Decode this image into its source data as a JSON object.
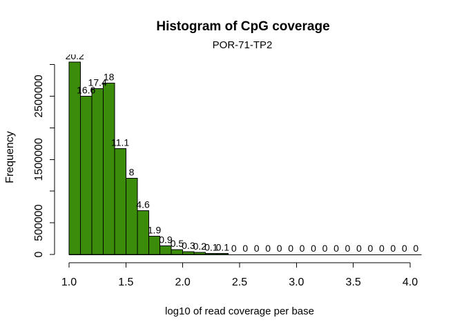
{
  "chart_data": {
    "type": "bar",
    "title": "Histogram of CpG coverage",
    "subtitle": "POR-71-TP2",
    "xlabel": "log10 of read coverage per base",
    "ylabel": "Frequency",
    "bin_edges": [
      1.0,
      1.1,
      1.2,
      1.3,
      1.4,
      1.5,
      1.6,
      1.7,
      1.8,
      1.9,
      2.0,
      2.1,
      2.2,
      2.3,
      2.4,
      2.5,
      2.6,
      2.7,
      2.8,
      2.9,
      3.0,
      3.1,
      3.2,
      3.3,
      3.4,
      3.5,
      3.6,
      3.7,
      3.8,
      3.9,
      4.0,
      4.1
    ],
    "percent_labels": [
      "20.2",
      "16.6",
      "17.4",
      "18",
      "11.1",
      "8",
      "4.6",
      "1.9",
      "0.9",
      "0.5",
      "0.3",
      "0.2",
      "0.1",
      "0.1",
      "0",
      "0",
      "0",
      "0",
      "0",
      "0",
      "0",
      "0",
      "0",
      "0",
      "0",
      "0",
      "0",
      "0",
      "0",
      "0",
      "0"
    ],
    "percent_values": [
      20.2,
      16.6,
      17.4,
      18,
      11.1,
      8,
      4.6,
      1.9,
      0.9,
      0.5,
      0.3,
      0.2,
      0.1,
      0.1,
      0,
      0,
      0,
      0,
      0,
      0,
      0,
      0,
      0,
      0,
      0,
      0,
      0,
      0,
      0,
      0,
      0
    ],
    "frequencies": [
      3040000,
      2498000,
      2619000,
      2709000,
      1671000,
      1204000,
      692000,
      286000,
      135000,
      75000,
      45000,
      30000,
      15000,
      15000,
      0,
      0,
      0,
      0,
      0,
      0,
      0,
      0,
      0,
      0,
      0,
      0,
      0,
      0,
      0,
      0,
      0
    ],
    "x_ticks": [
      1.0,
      1.5,
      2.0,
      2.5,
      3.0,
      3.5,
      4.0
    ],
    "x_tick_labels": [
      "1.0",
      "1.5",
      "2.0",
      "2.5",
      "3.0",
      "3.5",
      "4.0"
    ],
    "y_ticks": [
      0,
      500000,
      1000000,
      1500000,
      2000000,
      2500000,
      3000000
    ],
    "y_tick_labels": [
      "0",
      "500000",
      "",
      "1500000",
      "",
      "2500000",
      ""
    ],
    "xlim": [
      1.0,
      4.1
    ],
    "ylim": [
      0,
      3000000
    ],
    "grid": false,
    "legend": null,
    "bar_color": "#3A8C0A",
    "bar_border_color": "#000000",
    "axis_color": "#000000",
    "text_color": "#000000"
  }
}
